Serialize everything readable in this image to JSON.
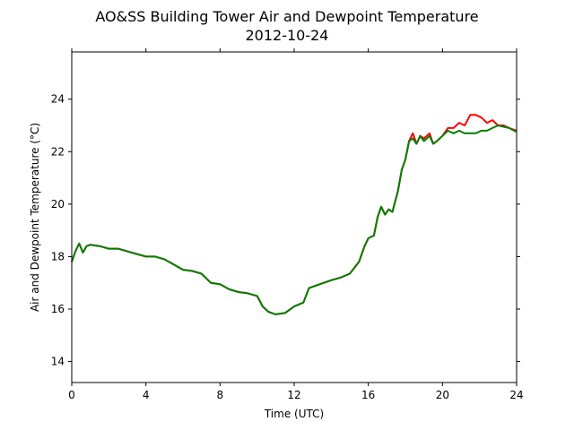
{
  "chart_data": {
    "type": "line",
    "title": "AO&SS Building Tower Air and Dewpoint Temperature",
    "subtitle": "2012-10-24",
    "xlabel": "Time (UTC)",
    "ylabel": "Air and Dewpoint Temperature (°C)",
    "xlim": [
      0,
      24
    ],
    "ylim": [
      13.2,
      25.8
    ],
    "xticks": [
      0,
      4,
      8,
      12,
      16,
      20,
      24
    ],
    "yticks": [
      14,
      16,
      18,
      20,
      22,
      24
    ],
    "grid": false,
    "series": [
      {
        "color": "#ff0000",
        "points": [
          [
            0,
            17.8
          ],
          [
            0.2,
            18.2
          ],
          [
            0.4,
            18.5
          ],
          [
            0.6,
            18.15
          ],
          [
            0.8,
            18.4
          ],
          [
            1,
            18.45
          ],
          [
            1.5,
            18.4
          ],
          [
            2,
            18.3
          ],
          [
            2.5,
            18.3
          ],
          [
            3,
            18.2
          ],
          [
            3.5,
            18.1
          ],
          [
            4,
            18.0
          ],
          [
            4.5,
            18.0
          ],
          [
            5,
            17.9
          ],
          [
            5.5,
            17.7
          ],
          [
            6,
            17.5
          ],
          [
            6.5,
            17.45
          ],
          [
            7,
            17.35
          ],
          [
            7.5,
            17.0
          ],
          [
            8,
            16.95
          ],
          [
            8.5,
            16.75
          ],
          [
            9,
            16.65
          ],
          [
            9.5,
            16.6
          ],
          [
            10,
            16.5
          ],
          [
            10.3,
            16.1
          ],
          [
            10.6,
            15.9
          ],
          [
            11,
            15.8
          ],
          [
            11.5,
            15.85
          ],
          [
            12,
            16.1
          ],
          [
            12.5,
            16.25
          ],
          [
            12.8,
            16.8
          ],
          [
            13.2,
            16.9
          ],
          [
            13.6,
            17.0
          ],
          [
            14,
            17.1
          ],
          [
            14.5,
            17.2
          ],
          [
            15,
            17.35
          ],
          [
            15.5,
            17.8
          ],
          [
            15.8,
            18.4
          ],
          [
            16,
            18.7
          ],
          [
            16.3,
            18.8
          ],
          [
            16.5,
            19.5
          ],
          [
            16.7,
            19.9
          ],
          [
            16.9,
            19.6
          ],
          [
            17.1,
            19.8
          ],
          [
            17.3,
            19.7
          ],
          [
            17.6,
            20.5
          ],
          [
            17.8,
            21.3
          ],
          [
            18,
            21.7
          ],
          [
            18.2,
            22.4
          ],
          [
            18.4,
            22.7
          ],
          [
            18.6,
            22.3
          ],
          [
            18.8,
            22.6
          ],
          [
            19,
            22.5
          ],
          [
            19.3,
            22.7
          ],
          [
            19.5,
            22.3
          ],
          [
            19.7,
            22.4
          ],
          [
            20,
            22.6
          ],
          [
            20.3,
            22.9
          ],
          [
            20.6,
            22.9
          ],
          [
            20.9,
            23.1
          ],
          [
            21.2,
            23.0
          ],
          [
            21.5,
            23.4
          ],
          [
            21.8,
            23.4
          ],
          [
            22.1,
            23.3
          ],
          [
            22.4,
            23.1
          ],
          [
            22.7,
            23.2
          ],
          [
            23,
            23.0
          ],
          [
            23.3,
            23.0
          ],
          [
            23.6,
            22.9
          ],
          [
            24,
            22.8
          ]
        ]
      },
      {
        "color": "#007f00",
        "points": [
          [
            0,
            17.8
          ],
          [
            0.2,
            18.2
          ],
          [
            0.4,
            18.5
          ],
          [
            0.6,
            18.15
          ],
          [
            0.8,
            18.4
          ],
          [
            1,
            18.45
          ],
          [
            1.5,
            18.4
          ],
          [
            2,
            18.3
          ],
          [
            2.5,
            18.3
          ],
          [
            3,
            18.2
          ],
          [
            3.5,
            18.1
          ],
          [
            4,
            18.0
          ],
          [
            4.5,
            18.0
          ],
          [
            5,
            17.9
          ],
          [
            5.5,
            17.7
          ],
          [
            6,
            17.5
          ],
          [
            6.5,
            17.45
          ],
          [
            7,
            17.35
          ],
          [
            7.5,
            17.0
          ],
          [
            8,
            16.95
          ],
          [
            8.5,
            16.75
          ],
          [
            9,
            16.65
          ],
          [
            9.5,
            16.6
          ],
          [
            10,
            16.5
          ],
          [
            10.3,
            16.1
          ],
          [
            10.6,
            15.9
          ],
          [
            11,
            15.8
          ],
          [
            11.5,
            15.85
          ],
          [
            12,
            16.1
          ],
          [
            12.5,
            16.25
          ],
          [
            12.8,
            16.8
          ],
          [
            13.2,
            16.9
          ],
          [
            13.6,
            17.0
          ],
          [
            14,
            17.1
          ],
          [
            14.5,
            17.2
          ],
          [
            15,
            17.35
          ],
          [
            15.5,
            17.8
          ],
          [
            15.8,
            18.4
          ],
          [
            16,
            18.7
          ],
          [
            16.3,
            18.8
          ],
          [
            16.5,
            19.5
          ],
          [
            16.7,
            19.9
          ],
          [
            16.9,
            19.6
          ],
          [
            17.1,
            19.8
          ],
          [
            17.3,
            19.7
          ],
          [
            17.6,
            20.5
          ],
          [
            17.8,
            21.3
          ],
          [
            18,
            21.7
          ],
          [
            18.2,
            22.4
          ],
          [
            18.4,
            22.5
          ],
          [
            18.6,
            22.3
          ],
          [
            18.8,
            22.6
          ],
          [
            19,
            22.4
          ],
          [
            19.3,
            22.6
          ],
          [
            19.5,
            22.3
          ],
          [
            19.7,
            22.4
          ],
          [
            20,
            22.6
          ],
          [
            20.3,
            22.8
          ],
          [
            20.6,
            22.7
          ],
          [
            20.9,
            22.8
          ],
          [
            21.2,
            22.7
          ],
          [
            21.5,
            22.7
          ],
          [
            21.8,
            22.7
          ],
          [
            22.1,
            22.8
          ],
          [
            22.4,
            22.8
          ],
          [
            22.7,
            22.9
          ],
          [
            23,
            23.0
          ],
          [
            23.3,
            22.95
          ],
          [
            23.6,
            22.9
          ],
          [
            24,
            22.75
          ]
        ]
      }
    ]
  }
}
